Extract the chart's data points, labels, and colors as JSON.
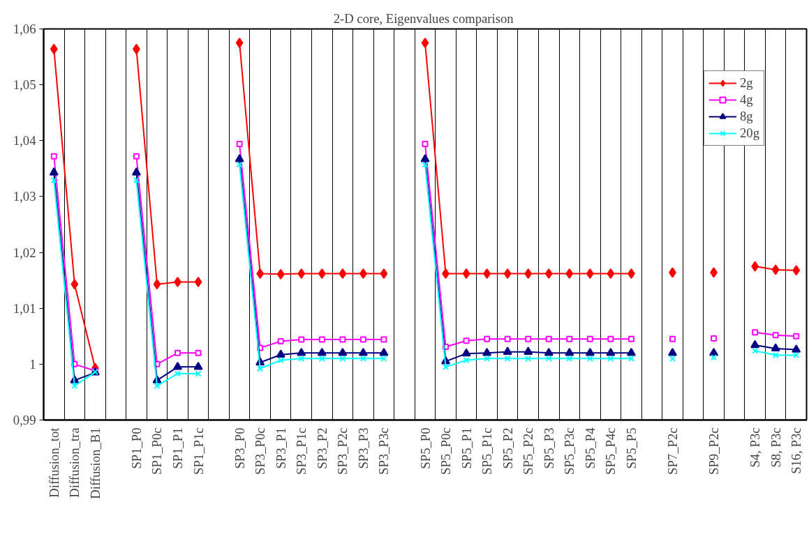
{
  "chart_data": {
    "type": "line",
    "title": "2-D core,  Eigenvalues comparison",
    "categories": [
      "Diffusion_tot",
      "Diffusion_tra",
      "Diffusion_B1",
      null,
      "SP1_P0",
      "SP1_P0c",
      "SP1_P1",
      "SP1_P1c",
      null,
      "SP3_P0",
      "SP3_P0c",
      "SP3_P1",
      "SP3_P1c",
      "SP3_P2",
      "SP3_P2c",
      "SP3_P3",
      "SP3_P3c",
      null,
      "SP5_P0",
      "SP5_P0c",
      "SP5_P1",
      "SP5_P1c",
      "SP5_P2",
      "SP5_P2c",
      "SP5_P3",
      "SP5_P3c",
      "SP5_P4",
      "SP5_P4c",
      "SP5_P5",
      null,
      "SP7_P2c",
      null,
      "SP9_P2c",
      null,
      "S4, P3c",
      "S8, P3c",
      "S16, P3c"
    ],
    "series": [
      {
        "name": "2g",
        "color": "#ff0000",
        "marker": "diamond",
        "values": [
          1.0564,
          1.0143,
          0.9993,
          null,
          1.0564,
          1.0143,
          1.0147,
          1.0147,
          null,
          1.0575,
          1.0162,
          1.0161,
          1.0162,
          1.0162,
          1.0162,
          1.0162,
          1.0162,
          null,
          1.0575,
          1.0162,
          1.0162,
          1.0162,
          1.0162,
          1.0162,
          1.0162,
          1.0162,
          1.0162,
          1.0162,
          1.0162,
          null,
          1.0164,
          null,
          1.0164,
          null,
          1.0175,
          1.0169,
          1.0168
        ]
      },
      {
        "name": "4g",
        "color": "#ff00ff",
        "marker": "square",
        "values": [
          1.0372,
          1.0,
          0.9988,
          null,
          1.0372,
          1.0,
          1.002,
          1.002,
          null,
          1.0394,
          1.0029,
          1.0041,
          1.0044,
          1.0044,
          1.0044,
          1.0044,
          1.0044,
          null,
          1.0394,
          1.0031,
          1.0042,
          1.0045,
          1.0045,
          1.0045,
          1.0045,
          1.0045,
          1.0045,
          1.0045,
          1.0045,
          null,
          1.0045,
          null,
          1.0046,
          null,
          1.0057,
          1.0052,
          1.005
        ]
      },
      {
        "name": "8g",
        "color": "#000080",
        "marker": "triangle",
        "values": [
          1.0343,
          0.9971,
          0.9985,
          null,
          1.0343,
          0.9971,
          0.9995,
          0.9995,
          null,
          1.0367,
          1.0003,
          1.0017,
          1.002,
          1.002,
          1.002,
          1.002,
          1.002,
          null,
          1.0367,
          1.0005,
          1.0019,
          1.002,
          1.0022,
          1.0022,
          1.002,
          1.002,
          1.002,
          1.002,
          1.002,
          null,
          1.002,
          null,
          1.002,
          null,
          1.0034,
          1.0028,
          1.0026
        ]
      },
      {
        "name": "20g",
        "color": "#00ffff",
        "marker": "cross",
        "values": [
          1.0329,
          0.9961,
          0.9986,
          null,
          1.0329,
          0.9961,
          0.9983,
          0.9983,
          null,
          1.0357,
          0.9992,
          1.0007,
          1.001,
          1.001,
          1.001,
          1.001,
          1.001,
          null,
          1.0357,
          0.9995,
          1.0007,
          1.001,
          1.001,
          1.001,
          1.001,
          1.001,
          1.001,
          1.001,
          1.001,
          null,
          1.001,
          null,
          1.0012,
          null,
          1.0024,
          1.0016,
          1.0016
        ]
      }
    ],
    "ylim": [
      0.99,
      1.06
    ],
    "yticks": [
      {
        "value": 0.99,
        "label": "0,99"
      },
      {
        "value": 1.0,
        "label": "1"
      },
      {
        "value": 1.01,
        "label": "1,01"
      },
      {
        "value": 1.02,
        "label": "1,02"
      },
      {
        "value": 1.03,
        "label": "1,03"
      },
      {
        "value": 1.04,
        "label": "1,04"
      },
      {
        "value": 1.05,
        "label": "1,05"
      },
      {
        "value": 1.06,
        "label": "1,06"
      }
    ],
    "grid": "x",
    "legend": "top right",
    "line_style": "solid"
  }
}
